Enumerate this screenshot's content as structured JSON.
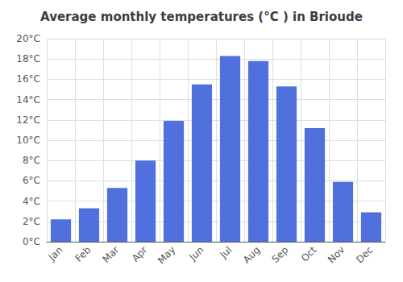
{
  "chart_data": {
    "type": "bar",
    "title": "Average monthly temperatures (°C ) in Brioude",
    "categories": [
      "Jan",
      "Feb",
      "Mar",
      "Apr",
      "May",
      "Jun",
      "Jul",
      "Aug",
      "Sep",
      "Oct",
      "Nov",
      "Dec"
    ],
    "values": [
      2.2,
      3.3,
      5.3,
      8.0,
      11.9,
      15.5,
      18.3,
      17.8,
      15.3,
      11.2,
      5.9,
      2.9
    ],
    "ylim": [
      0,
      20
    ],
    "yticks": [
      {
        "value": 0,
        "label": "0°C"
      },
      {
        "value": 2,
        "label": "2°C"
      },
      {
        "value": 4,
        "label": "4°C"
      },
      {
        "value": 6,
        "label": "6°C"
      },
      {
        "value": 8,
        "label": "8°C"
      },
      {
        "value": 10,
        "label": "10°C"
      },
      {
        "value": 12,
        "label": "12°C"
      },
      {
        "value": 14,
        "label": "14°C"
      },
      {
        "value": 16,
        "label": "16°C"
      },
      {
        "value": 18,
        "label": "18°C"
      },
      {
        "value": 20,
        "label": "20°C"
      }
    ],
    "grid": true
  }
}
